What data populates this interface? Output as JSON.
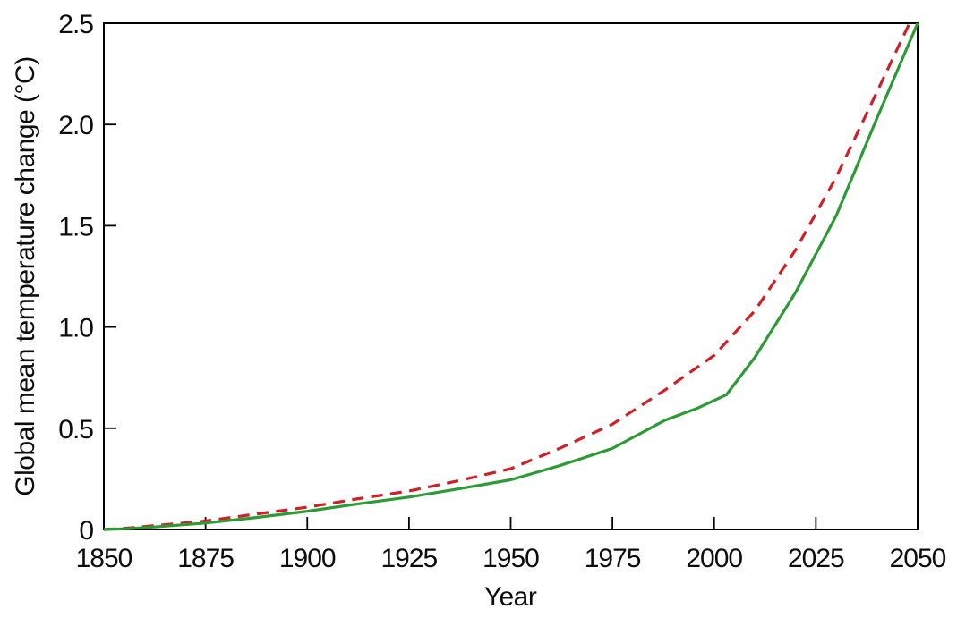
{
  "figure": {
    "background": "#ffffff",
    "axis_color": "#000000",
    "text_color": "#0d0d0d"
  },
  "chart_data": {
    "type": "line",
    "title": "",
    "xlabel": "Year",
    "ylabel": "Global mean temperature change (°C)",
    "xlim": [
      1850,
      2050
    ],
    "ylim": [
      0,
      2.5
    ],
    "x_ticks": [
      1850,
      1875,
      1900,
      1925,
      1950,
      1975,
      2000,
      2025,
      2050
    ],
    "x_tick_labels": [
      "1850",
      "1875",
      "1900",
      "1925",
      "1950",
      "1975",
      "2000",
      "2025",
      "2050"
    ],
    "y_ticks": [
      0,
      0.5,
      1.0,
      1.5,
      2.0,
      2.5
    ],
    "y_tick_labels": [
      "0",
      "0.5",
      "1.0",
      "1.5",
      "2.0",
      "2.5"
    ],
    "grid": false,
    "legend_position": "none",
    "series": [
      {
        "name": "red-dashed-curve",
        "style": "dashed",
        "color": "#d02027",
        "points": [
          [
            1850,
            0.0
          ],
          [
            1856,
            0.007
          ],
          [
            1862,
            0.018
          ],
          [
            1875,
            0.042
          ],
          [
            1887,
            0.075
          ],
          [
            1900,
            0.11
          ],
          [
            1912,
            0.15
          ],
          [
            1925,
            0.19
          ],
          [
            1937,
            0.24
          ],
          [
            1950,
            0.3
          ],
          [
            1962,
            0.4
          ],
          [
            1975,
            0.52
          ],
          [
            1988,
            0.69
          ],
          [
            2000,
            0.86
          ],
          [
            2010,
            1.08
          ],
          [
            2020,
            1.38
          ],
          [
            2030,
            1.74
          ],
          [
            2040,
            2.16
          ],
          [
            2048,
            2.5
          ]
        ]
      },
      {
        "name": "green-solid-curve",
        "style": "solid",
        "color": "#2d9b35",
        "points": [
          [
            1850,
            0.0
          ],
          [
            1856,
            0.004
          ],
          [
            1862,
            0.012
          ],
          [
            1875,
            0.032
          ],
          [
            1887,
            0.058
          ],
          [
            1900,
            0.09
          ],
          [
            1912,
            0.125
          ],
          [
            1925,
            0.16
          ],
          [
            1937,
            0.2
          ],
          [
            1950,
            0.245
          ],
          [
            1962,
            0.315
          ],
          [
            1975,
            0.4
          ],
          [
            1988,
            0.54
          ],
          [
            1996,
            0.6
          ],
          [
            2003,
            0.665
          ],
          [
            2010,
            0.85
          ],
          [
            2020,
            1.17
          ],
          [
            2030,
            1.55
          ],
          [
            2040,
            2.03
          ],
          [
            2050,
            2.5
          ]
        ]
      }
    ]
  }
}
